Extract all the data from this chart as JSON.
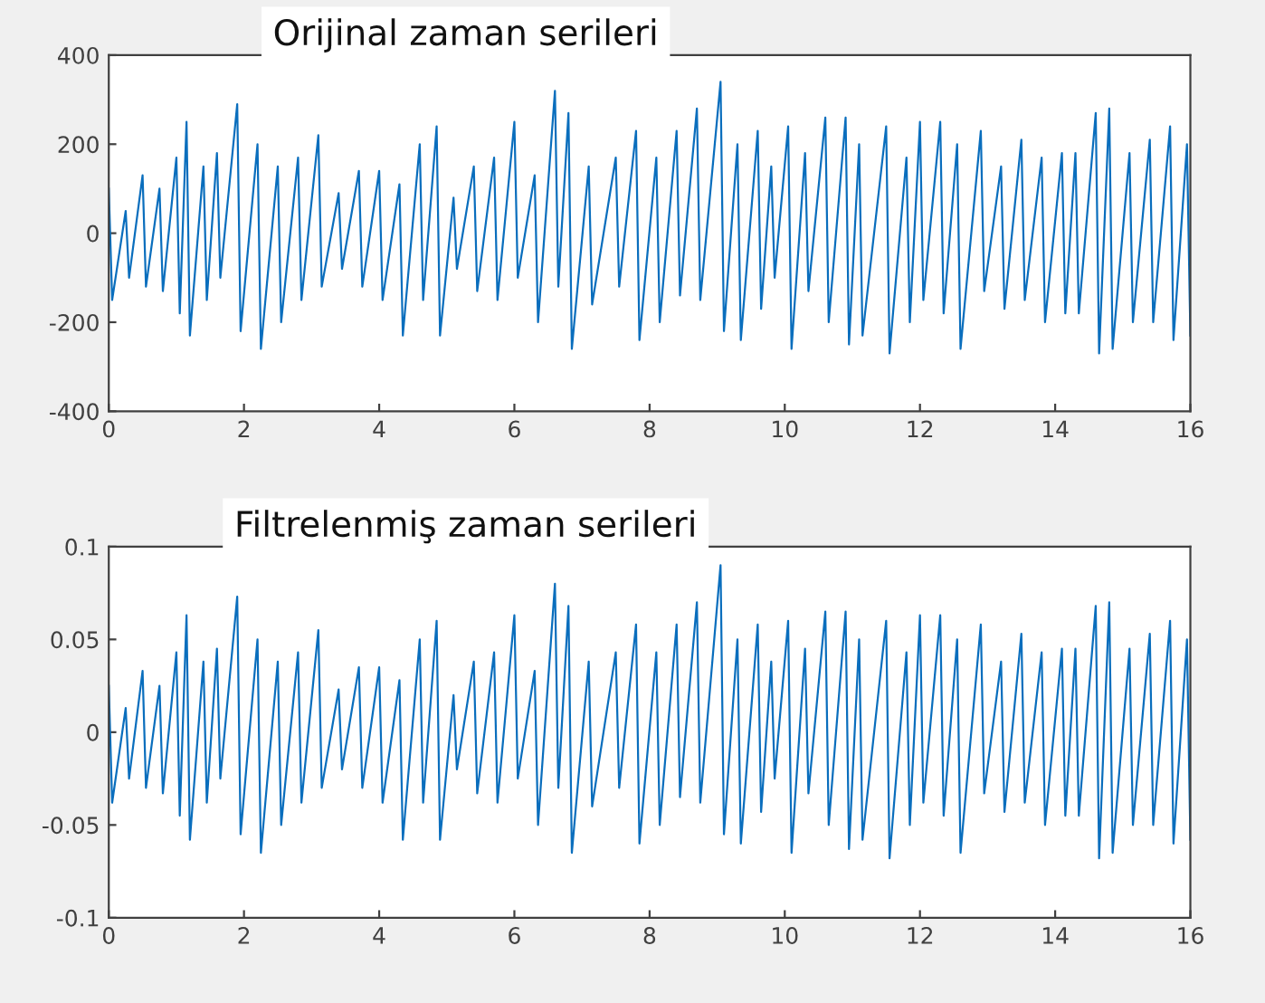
{
  "chart_data": [
    {
      "type": "line",
      "title": "Orijinal zaman serileri",
      "x": [
        0,
        0.05,
        0.25,
        0.3,
        0.5,
        0.55,
        0.75,
        0.8,
        1.0,
        1.05,
        1.15,
        1.2,
        1.4,
        1.45,
        1.6,
        1.65,
        1.9,
        1.95,
        2.2,
        2.25,
        2.5,
        2.55,
        2.8,
        2.85,
        3.1,
        3.15,
        3.4,
        3.45,
        3.7,
        3.75,
        4.0,
        4.05,
        4.3,
        4.35,
        4.6,
        4.65,
        4.85,
        4.9,
        5.1,
        5.15,
        5.4,
        5.45,
        5.7,
        5.75,
        6.0,
        6.05,
        6.3,
        6.35,
        6.6,
        6.65,
        6.8,
        6.85,
        7.1,
        7.15,
        7.5,
        7.55,
        7.8,
        7.85,
        8.1,
        8.15,
        8.4,
        8.45,
        8.7,
        8.75,
        9.05,
        9.1,
        9.3,
        9.35,
        9.6,
        9.65,
        9.8,
        9.85,
        10.05,
        10.1,
        10.3,
        10.35,
        10.6,
        10.65,
        10.9,
        10.95,
        11.1,
        11.15,
        11.5,
        11.55,
        11.8,
        11.85,
        12.0,
        12.05,
        12.3,
        12.35,
        12.55,
        12.6,
        12.9,
        12.95,
        13.2,
        13.25,
        13.5,
        13.55,
        13.8,
        13.85,
        14.1,
        14.15,
        14.3,
        14.35,
        14.6,
        14.65,
        14.8,
        14.85,
        15.1,
        15.15,
        15.4,
        15.45,
        15.7,
        15.75,
        15.95,
        16.0
      ],
      "series": [
        {
          "color": "#0a6ebd",
          "values": [
            100,
            -150,
            50,
            -100,
            130,
            -120,
            100,
            -130,
            170,
            -180,
            250,
            -230,
            150,
            -150,
            180,
            -100,
            290,
            -220,
            200,
            -260,
            150,
            -200,
            170,
            -150,
            220,
            -120,
            90,
            -80,
            140,
            -120,
            140,
            -150,
            110,
            -230,
            200,
            -150,
            240,
            -230,
            80,
            -80,
            150,
            -130,
            170,
            -150,
            250,
            -100,
            130,
            -200,
            320,
            -120,
            270,
            -260,
            150,
            -160,
            170,
            -120,
            230,
            -240,
            170,
            -200,
            230,
            -140,
            280,
            -150,
            340,
            -220,
            200,
            -240,
            230,
            -170,
            150,
            -100,
            240,
            -260,
            180,
            -130,
            260,
            -200,
            260,
            -250,
            200,
            -230,
            240,
            -270,
            170,
            -200,
            250,
            -150,
            250,
            -180,
            200,
            -260,
            230,
            -130,
            150,
            -170,
            210,
            -150,
            170,
            -200,
            180,
            -180,
            180,
            -180,
            270,
            -270,
            280,
            -260,
            180,
            -200,
            210,
            -200,
            240,
            -240,
            200,
            -230
          ]
        }
      ],
      "xlim": [
        0,
        16
      ],
      "xticks": [
        0,
        2,
        4,
        6,
        8,
        10,
        12,
        14,
        16
      ],
      "ylim": [
        -400,
        400
      ],
      "yticks": [
        -400,
        -200,
        0,
        200,
        400
      ],
      "grid": false
    },
    {
      "type": "line",
      "title": "Filtrelenmiş zaman serileri",
      "x": [
        0,
        0.05,
        0.25,
        0.3,
        0.5,
        0.55,
        0.75,
        0.8,
        1.0,
        1.05,
        1.15,
        1.2,
        1.4,
        1.45,
        1.6,
        1.65,
        1.9,
        1.95,
        2.2,
        2.25,
        2.5,
        2.55,
        2.8,
        2.85,
        3.1,
        3.15,
        3.4,
        3.45,
        3.7,
        3.75,
        4.0,
        4.05,
        4.3,
        4.35,
        4.6,
        4.65,
        4.85,
        4.9,
        5.1,
        5.15,
        5.4,
        5.45,
        5.7,
        5.75,
        6.0,
        6.05,
        6.3,
        6.35,
        6.6,
        6.65,
        6.8,
        6.85,
        7.1,
        7.15,
        7.5,
        7.55,
        7.8,
        7.85,
        8.1,
        8.15,
        8.4,
        8.45,
        8.7,
        8.75,
        9.05,
        9.1,
        9.3,
        9.35,
        9.6,
        9.65,
        9.8,
        9.85,
        10.05,
        10.1,
        10.3,
        10.35,
        10.6,
        10.65,
        10.9,
        10.95,
        11.1,
        11.15,
        11.5,
        11.55,
        11.8,
        11.85,
        12.0,
        12.05,
        12.3,
        12.35,
        12.55,
        12.6,
        12.9,
        12.95,
        13.2,
        13.25,
        13.5,
        13.55,
        13.8,
        13.85,
        14.1,
        14.15,
        14.3,
        14.35,
        14.6,
        14.65,
        14.8,
        14.85,
        15.1,
        15.15,
        15.4,
        15.45,
        15.7,
        15.75,
        15.95,
        16.0
      ],
      "series": [
        {
          "color": "#0a6ebd",
          "values": [
            0.025,
            -0.038,
            0.013,
            -0.025,
            0.033,
            -0.03,
            0.025,
            -0.033,
            0.043,
            -0.045,
            0.063,
            -0.058,
            0.038,
            -0.038,
            0.045,
            -0.025,
            0.073,
            -0.055,
            0.05,
            -0.065,
            0.038,
            -0.05,
            0.043,
            -0.038,
            0.055,
            -0.03,
            0.023,
            -0.02,
            0.035,
            -0.03,
            0.035,
            -0.038,
            0.028,
            -0.058,
            0.05,
            -0.038,
            0.06,
            -0.058,
            0.02,
            -0.02,
            0.038,
            -0.033,
            0.043,
            -0.038,
            0.063,
            -0.025,
            0.033,
            -0.05,
            0.08,
            -0.03,
            0.068,
            -0.065,
            0.038,
            -0.04,
            0.043,
            -0.03,
            0.058,
            -0.06,
            0.043,
            -0.05,
            0.058,
            -0.035,
            0.07,
            -0.038,
            0.09,
            -0.055,
            0.05,
            -0.06,
            0.058,
            -0.043,
            0.038,
            -0.025,
            0.06,
            -0.065,
            0.045,
            -0.033,
            0.065,
            -0.05,
            0.065,
            -0.063,
            0.05,
            -0.058,
            0.06,
            -0.068,
            0.043,
            -0.05,
            0.063,
            -0.038,
            0.063,
            -0.045,
            0.05,
            -0.065,
            0.058,
            -0.033,
            0.038,
            -0.043,
            0.053,
            -0.038,
            0.043,
            -0.05,
            0.045,
            -0.045,
            0.045,
            -0.045,
            0.068,
            -0.068,
            0.07,
            -0.065,
            0.045,
            -0.05,
            0.053,
            -0.05,
            0.06,
            -0.06,
            0.05,
            -0.058
          ]
        }
      ],
      "xlim": [
        0,
        16
      ],
      "xticks": [
        0,
        2,
        4,
        6,
        8,
        10,
        12,
        14,
        16
      ],
      "ylim": [
        -0.1,
        0.1
      ],
      "yticks": [
        -0.1,
        -0.05,
        0,
        0.05,
        0.1
      ],
      "grid": false
    }
  ]
}
